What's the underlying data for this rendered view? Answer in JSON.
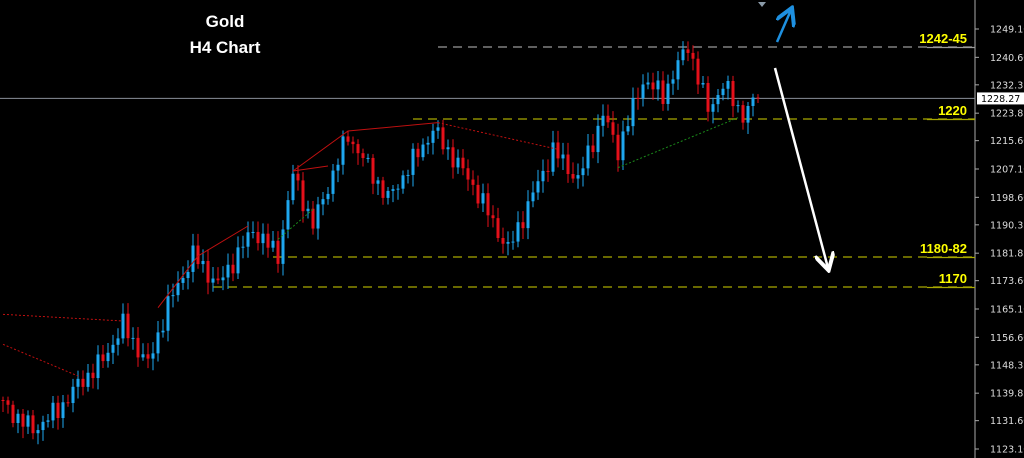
{
  "header": {
    "title_line1": "Gold",
    "title_line2": "H4 Chart"
  },
  "chart_data": {
    "type": "candlestick",
    "title": "Gold H4 Chart",
    "ylim": [
      1121.5,
      1257.0
    ],
    "y_ticks": [
      "1249.10",
      "1240.60",
      "1232.35",
      "1223.85",
      "1215.60",
      "1207.10",
      "1198.60",
      "1190.35",
      "1181.85",
      "1173.60",
      "1165.10",
      "1156.60",
      "1148.35",
      "1139.85",
      "1131.60",
      "1123.10"
    ],
    "current_price": "1228.27",
    "grid": false,
    "colors": {
      "up": "#1ea7ef",
      "down": "#e5101a",
      "background": "#000000",
      "level": "#a8a800",
      "level_label": "#ffff00",
      "arrow_down": "#ffffff",
      "arrow_up": "#1e90e0"
    },
    "price_path": [
      [
        0,
        1136.3
      ],
      [
        6,
        1128.8
      ],
      [
        11,
        1134.8
      ],
      [
        15,
        1142.3
      ],
      [
        20,
        1149.8
      ],
      [
        24,
        1160.3
      ],
      [
        29,
        1148.3
      ],
      [
        33,
        1166.3
      ],
      [
        38,
        1181.3
      ],
      [
        43,
        1172.3
      ],
      [
        50,
        1188.8
      ],
      [
        55,
        1181.3
      ],
      [
        58,
        1205.3
      ],
      [
        62,
        1190.3
      ],
      [
        69,
        1217.3
      ],
      [
        77,
        1198.1
      ],
      [
        86,
        1218.8
      ],
      [
        94,
        1202.3
      ],
      [
        101,
        1182.8
      ],
      [
        110,
        1212.8
      ],
      [
        115,
        1203.8
      ],
      [
        120,
        1223.3
      ],
      [
        123,
        1212.8
      ],
      [
        128,
        1233.8
      ],
      [
        132,
        1229.3
      ],
      [
        137,
        1244.3
      ],
      [
        141,
        1224.8
      ],
      [
        144,
        1232.3
      ],
      [
        148,
        1223.3
      ],
      [
        151,
        1228.27
      ]
    ],
    "levels": [
      {
        "label": "1242-45",
        "price": 1243.7,
        "from_bar": 87,
        "color": "#9a9a9a"
      },
      {
        "label": "1220",
        "price": 1222.1,
        "from_bar": 82,
        "color": "#a8a800"
      },
      {
        "label": "1180-82",
        "price": 1180.7,
        "from_bar": 54,
        "color": "#a8a800"
      },
      {
        "label": "1170",
        "price": 1171.7,
        "from_bar": 42,
        "color": "#a8a800"
      }
    ],
    "trendlines": [
      {
        "points": [
          [
            0,
            1163.5
          ],
          [
            24,
            1161.5
          ]
        ],
        "color": "#c01010",
        "style": "dotted"
      },
      {
        "points": [
          [
            0,
            1154.5
          ],
          [
            15,
            1145
          ]
        ],
        "color": "#c01010",
        "style": "dotted"
      },
      {
        "points": [
          [
            31,
            1165.5
          ],
          [
            39,
            1181
          ],
          [
            49,
            1190
          ]
        ],
        "color": "#c01010",
        "style": "solid"
      },
      {
        "points": [
          [
            58,
            1206.5
          ],
          [
            65,
            1208
          ]
        ],
        "color": "#c01010",
        "style": "solid"
      },
      {
        "points": [
          [
            58,
            1206.5
          ],
          [
            69,
            1218.5
          ],
          [
            87,
            1221
          ]
        ],
        "color": "#c01010",
        "style": "solid"
      },
      {
        "points": [
          [
            87,
            1221
          ],
          [
            111,
            1213
          ]
        ],
        "color": "#c01010",
        "style": "dotted"
      },
      {
        "points": [
          [
            123,
            1207.5
          ],
          [
            147,
            1222.5
          ]
        ],
        "color": "#1a8a1a",
        "style": "dotted"
      },
      {
        "points": [
          [
            55,
            1186
          ],
          [
            62,
            1195
          ]
        ],
        "color": "#1a8a1a",
        "style": "dotted"
      }
    ]
  }
}
